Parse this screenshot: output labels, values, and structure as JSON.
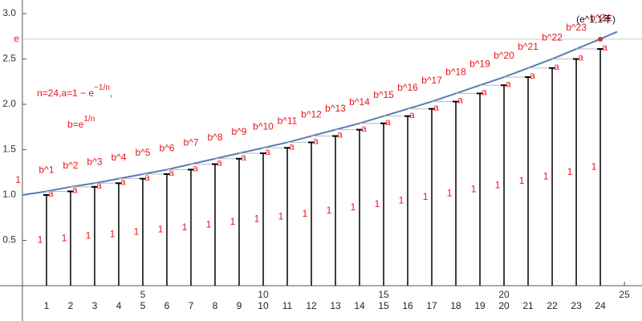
{
  "chart_data": {
    "type": "bar",
    "categories": [
      "1",
      "2",
      "3",
      "4",
      "5",
      "6",
      "7",
      "8",
      "9",
      "10",
      "11",
      "12",
      "13",
      "14",
      "15",
      "16",
      "17",
      "18",
      "19",
      "20",
      "21",
      "22",
      "23",
      "24"
    ],
    "values": [
      1,
      1.04,
      1.09,
      1.13,
      1.18,
      1.23,
      1.28,
      1.34,
      1.4,
      1.46,
      1.52,
      1.58,
      1.65,
      1.72,
      1.79,
      1.87,
      1.95,
      2.03,
      2.12,
      2.21,
      2.3,
      2.4,
      2.5,
      2.61
    ],
    "bar_labels": [
      "b^1",
      "b^2",
      "b^3",
      "b^4",
      "b^5",
      "b^6",
      "b^7",
      "b^8",
      "b^9",
      "b^10",
      "b^11",
      "b^12",
      "b^13",
      "b^14",
      "b^15",
      "b^16",
      "b^17",
      "b^18",
      "b^19",
      "b^20",
      "b^21",
      "b^22",
      "b^23",
      "b^24"
    ],
    "top_label": "a",
    "bottom_label": "1",
    "color": "#000000",
    "label_color": "#e8141c",
    "curve": {
      "color": "#5b7bb5",
      "x": [
        0,
        1,
        2,
        3,
        4,
        5,
        6,
        7,
        8,
        9,
        10,
        11,
        12,
        13,
        14,
        15,
        16,
        17,
        18,
        19,
        20,
        21,
        22,
        23,
        24,
        24.7
      ],
      "values": [
        1,
        1.04,
        1.09,
        1.13,
        1.18,
        1.23,
        1.28,
        1.34,
        1.4,
        1.46,
        1.52,
        1.58,
        1.65,
        1.72,
        1.79,
        1.87,
        1.95,
        2.03,
        2.12,
        2.21,
        2.3,
        2.4,
        2.5,
        2.61,
        2.72,
        2.8
      ]
    },
    "xlim": [
      -0.93,
      25.73
    ],
    "ylim": [
      0,
      3.15
    ],
    "xticks": [
      5,
      10,
      15,
      20,
      25
    ],
    "yticks": [
      0.5,
      {
        "value": 1,
        "label": "1.0"
      },
      1.5,
      {
        "value": 2,
        "label": "2.0"
      },
      2.5,
      {
        "value": 3,
        "label": "3.0"
      }
    ],
    "e_line": {
      "value": 2.718,
      "label": "e"
    },
    "one_marker": {
      "value": 1.16,
      "label": "1"
    },
    "point": {
      "x": 24,
      "y": 2.718,
      "label": "(e^1,1年)"
    },
    "formula_a": {
      "text": "n=24,a=1 − e",
      "exponent": "−1/n",
      "suffix": ","
    },
    "formula_b": {
      "text": "b=e",
      "exponent": "1/n"
    }
  }
}
